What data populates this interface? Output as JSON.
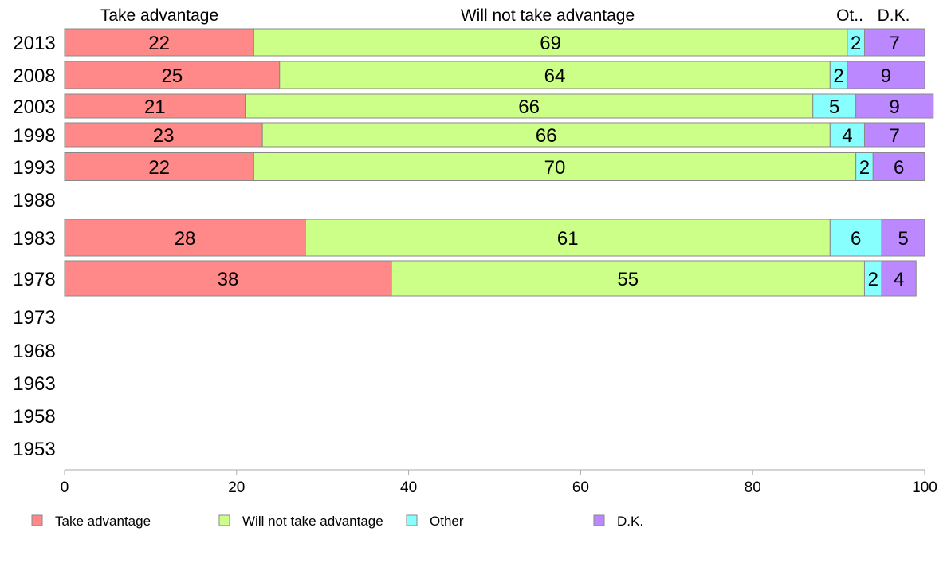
{
  "chart_data": {
    "type": "bar",
    "orientation": "horizontal",
    "stacked": true,
    "xlim": [
      0,
      100
    ],
    "x_ticks": [
      "0",
      "20",
      "40",
      "60",
      "80",
      "100"
    ],
    "column_headers": [
      "Take advantage",
      "Will not take advantage",
      "Ot..",
      "D.K."
    ],
    "categories": [
      "2013",
      "2008",
      "2003",
      "1998",
      "1993",
      "1988",
      "1983",
      "1978",
      "1973",
      "1968",
      "1963",
      "1958",
      "1953"
    ],
    "series": [
      {
        "name": "Take advantage",
        "color": "#ff8888",
        "values": [
          22,
          25,
          21,
          23,
          22,
          null,
          28,
          38,
          null,
          null,
          null,
          null,
          null
        ]
      },
      {
        "name": "Will not take advantage",
        "color": "#ccff88",
        "values": [
          69,
          64,
          66,
          66,
          70,
          null,
          61,
          55,
          null,
          null,
          null,
          null,
          null
        ]
      },
      {
        "name": "Other",
        "color": "#88ffff",
        "values": [
          2,
          2,
          5,
          4,
          2,
          null,
          6,
          2,
          null,
          null,
          null,
          null,
          null
        ]
      },
      {
        "name": "D.K.",
        "color": "#bb88ff",
        "values": [
          7,
          9,
          9,
          7,
          6,
          null,
          5,
          4,
          null,
          null,
          null,
          null,
          null
        ]
      }
    ],
    "legend_position": "bottom",
    "grid": false
  }
}
